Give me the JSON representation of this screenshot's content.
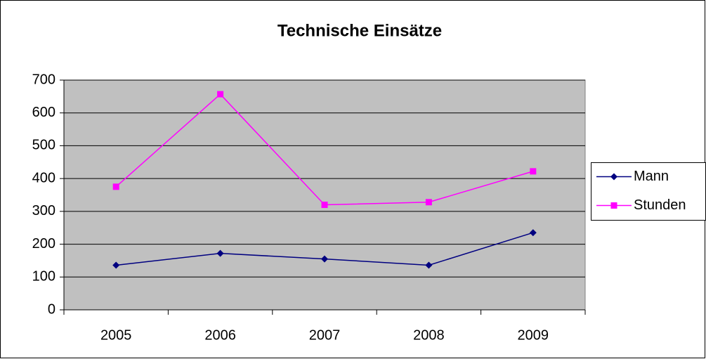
{
  "chart_data": {
    "type": "line",
    "title": "Technische Einsätze",
    "categories": [
      "2005",
      "2006",
      "2007",
      "2008",
      "2009"
    ],
    "series": [
      {
        "name": "Mann",
        "color": "#000080",
        "marker": "diamond",
        "values": [
          136,
          172,
          155,
          136,
          235
        ]
      },
      {
        "name": "Stunden",
        "color": "#FF00FF",
        "marker": "square",
        "values": [
          375,
          657,
          320,
          328,
          422
        ]
      }
    ],
    "ylim": [
      0,
      700
    ],
    "yticks": [
      0,
      100,
      200,
      300,
      400,
      500,
      600,
      700
    ],
    "grid": true,
    "legend": "right",
    "background": "#C0C0C0"
  }
}
